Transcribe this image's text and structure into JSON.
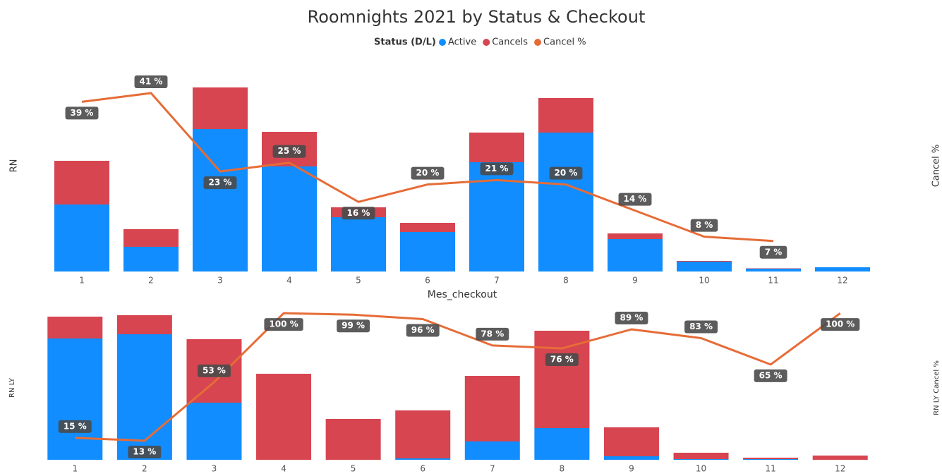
{
  "chart_data": [
    {
      "type": "combo",
      "title": "Roomnights 2021 by Status & Checkout",
      "legend_title": "Status (D/L)",
      "y_label": "RN",
      "y2_label": "Cancel %",
      "x_label": "Mes_checkout",
      "categories": [
        "1",
        "2",
        "3",
        "4",
        "5",
        "6",
        "7",
        "8",
        "9",
        "10",
        "11",
        "12"
      ],
      "ylim": [
        0,
        290
      ],
      "y2lim": [
        0,
        47
      ],
      "series": [
        {
          "name": "Active",
          "type": "bar",
          "color": "#118dff",
          "values": [
            95,
            35,
            202,
            149,
            77,
            56,
            155,
            197,
            46,
            14,
            4,
            6
          ]
        },
        {
          "name": "Cancels",
          "type": "bar",
          "color": "#d64550",
          "values": [
            62,
            25,
            59,
            49,
            14,
            13,
            42,
            49,
            8,
            1,
            0.5,
            0
          ]
        },
        {
          "name": "Cancel %",
          "type": "line",
          "axis": "y2",
          "color": "#e66c37",
          "values": [
            39,
            41,
            23,
            25,
            16,
            20,
            21,
            20,
            14,
            8,
            7,
            null
          ],
          "value_labels": [
            "39 %",
            "41 %",
            "23 %",
            "25 %",
            "16 %",
            "20 %",
            "21 %",
            "20 %",
            "14 %",
            "8 %",
            "7 %",
            null
          ]
        }
      ]
    },
    {
      "type": "combo",
      "y_label": "RN LY",
      "y2_label": "RN LY Cancel %",
      "categories": [
        "1",
        "2",
        "3",
        "4",
        "5",
        "6",
        "7",
        "8",
        "9",
        "10",
        "11",
        "12"
      ],
      "ylim": [
        0,
        212
      ],
      "y2lim": [
        0,
        102
      ],
      "series": [
        {
          "type": "bar",
          "color": "#118dff",
          "values": [
            172,
            178,
            81,
            0,
            0,
            2,
            26,
            45,
            5,
            1,
            1,
            0
          ]
        },
        {
          "type": "bar",
          "color": "#d64550",
          "values": [
            31,
            27,
            90,
            122,
            58,
            68,
            93,
            138,
            41,
            9,
            2,
            6
          ]
        },
        {
          "type": "line",
          "axis": "y2",
          "color": "#e66c37",
          "values": [
            15,
            13,
            53,
            100,
            99,
            96,
            78,
            76,
            89,
            83,
            65,
            100
          ],
          "value_labels": [
            "15 %",
            "13 %",
            "53 %",
            "100 %",
            "99 %",
            "96 %",
            "78 %",
            "76 %",
            "89 %",
            "83 %",
            "65 %",
            "100 %"
          ]
        }
      ]
    }
  ]
}
